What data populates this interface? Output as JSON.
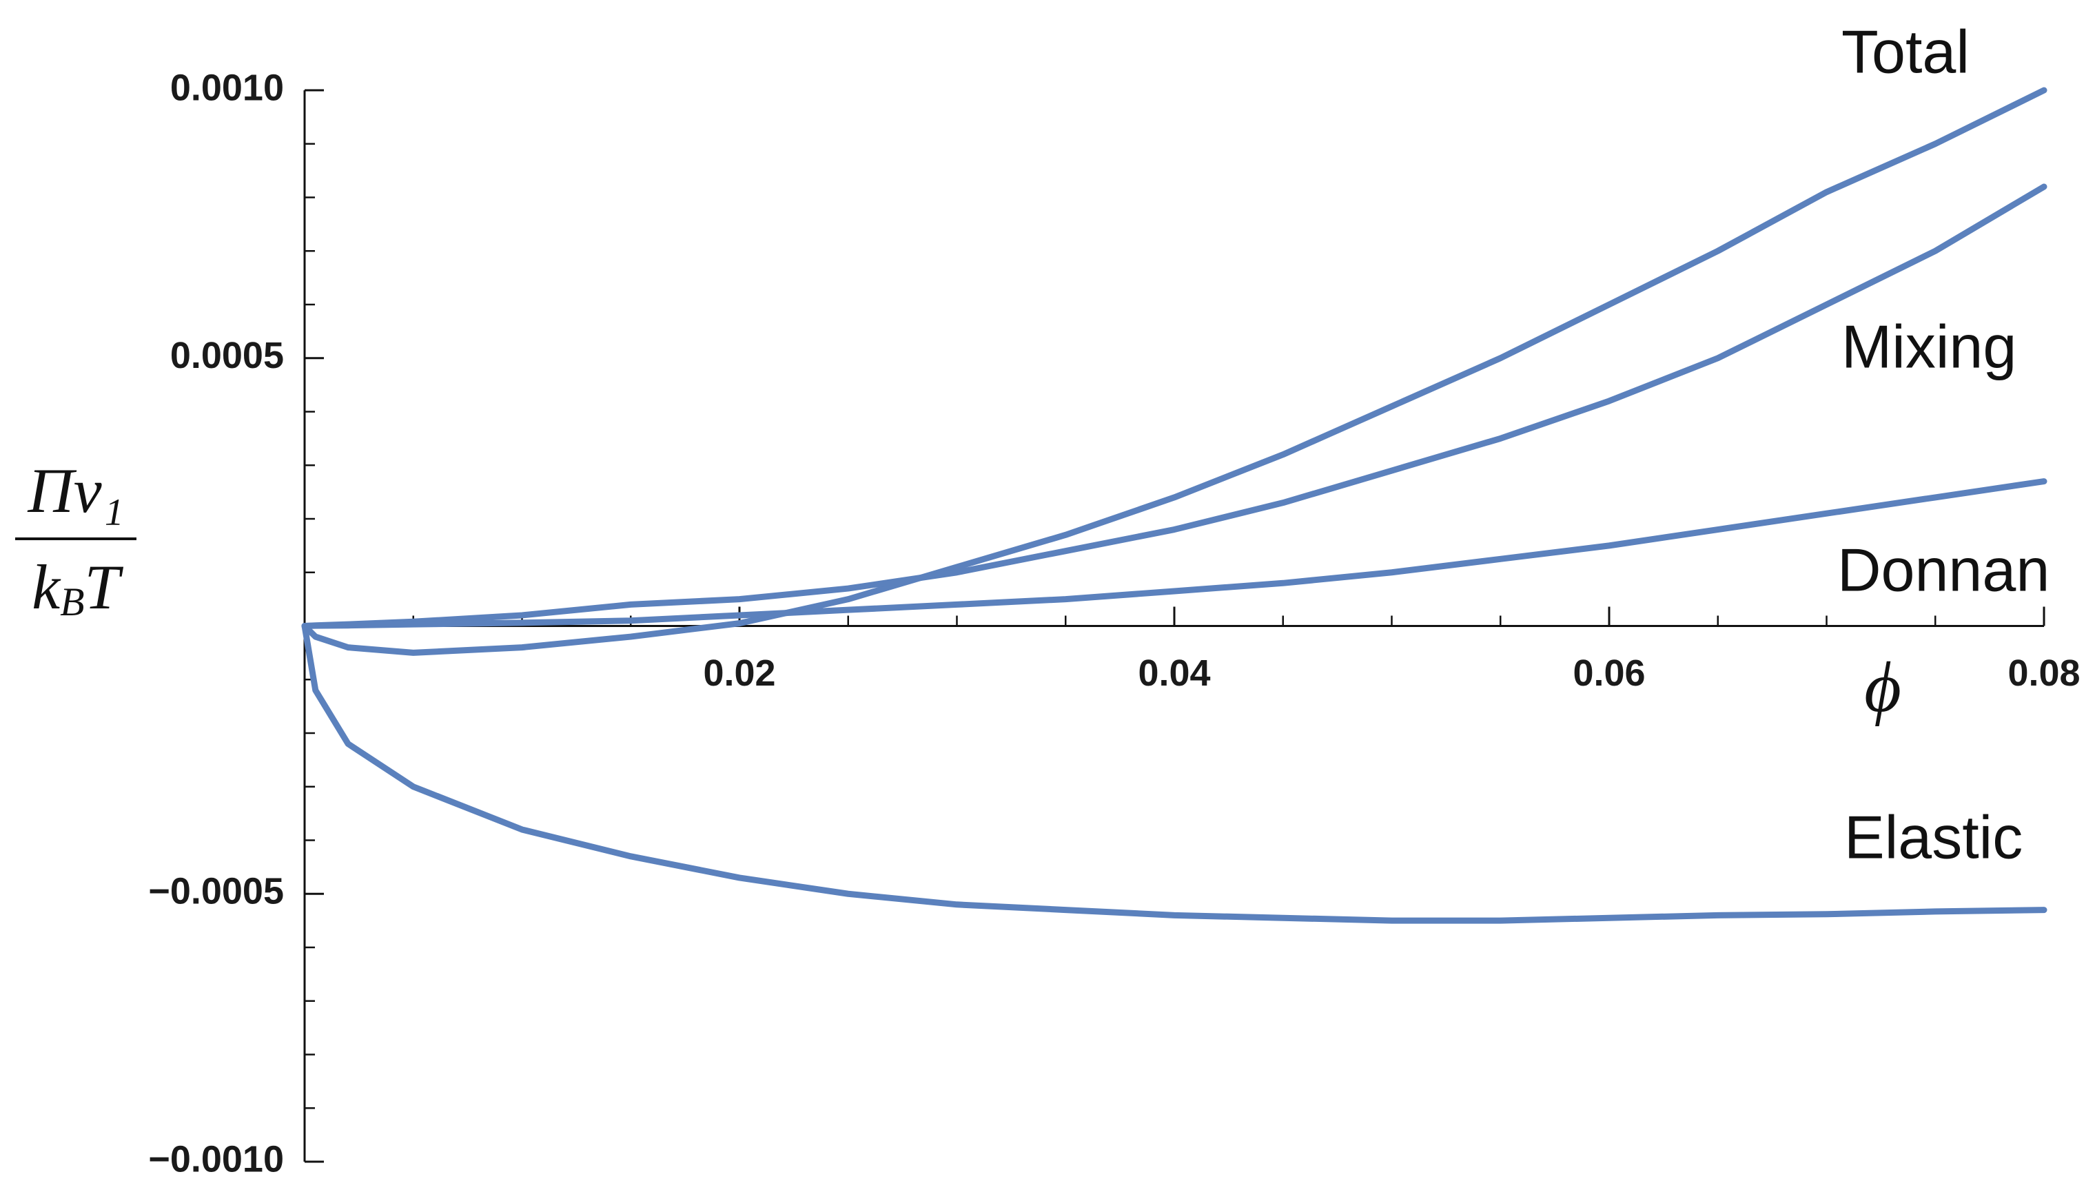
{
  "chart_data": {
    "type": "line",
    "xlabel": "ϕ",
    "ylabel": {
      "numerator": "Πv₁",
      "denominator": {
        "base": "k",
        "subscript": "B",
        "tail": "T"
      }
    },
    "x": [
      0,
      0.0005,
      0.002,
      0.005,
      0.01,
      0.015,
      0.02,
      0.025,
      0.03,
      0.035,
      0.04,
      0.045,
      0.05,
      0.055,
      0.06,
      0.065,
      0.07,
      0.075,
      0.08
    ],
    "series": [
      {
        "name": "Total",
        "color": "#5b81bd",
        "values": [
          0,
          -2e-05,
          -4e-05,
          -5e-05,
          -4e-05,
          -2e-05,
          5e-06,
          5e-05,
          0.00011,
          0.00017,
          0.00024,
          0.00032,
          0.00041,
          0.0005,
          0.0006,
          0.0007,
          0.00081,
          0.0009,
          0.001
        ]
      },
      {
        "name": "Mixing",
        "color": "#5b81bd",
        "values": [
          0,
          1e-06,
          3e-06,
          8e-06,
          2e-05,
          4e-05,
          5e-05,
          7e-05,
          0.0001,
          0.00014,
          0.00018,
          0.00023,
          0.00029,
          0.00035,
          0.00042,
          0.0005,
          0.0006,
          0.0007,
          0.00082
        ]
      },
      {
        "name": "Donnan",
        "color": "#5b81bd",
        "values": [
          0,
          5e-07,
          1e-06,
          3e-06,
          6e-06,
          1e-05,
          2e-05,
          3e-05,
          4e-05,
          5e-05,
          6.5e-05,
          8e-05,
          0.0001,
          0.000125,
          0.00015,
          0.00018,
          0.00021,
          0.00024,
          0.00027
        ]
      },
      {
        "name": "Elastic",
        "color": "#5b81bd",
        "values": [
          0,
          -0.00012,
          -0.00022,
          -0.0003,
          -0.00038,
          -0.00043,
          -0.00047,
          -0.0005,
          -0.00052,
          -0.00053,
          -0.00054,
          -0.000545,
          -0.00055,
          -0.00055,
          -0.000545,
          -0.00054,
          -0.000538,
          -0.000533,
          -0.00053
        ]
      }
    ],
    "xlim": [
      0,
      0.08
    ],
    "ylim": [
      -0.001,
      0.001
    ],
    "xticks": [
      0.02,
      0.04,
      0.06,
      0.08
    ],
    "yticks": [
      {
        "value": -0.001,
        "label": "−0.0010"
      },
      {
        "value": -0.0005,
        "label": "−0.0005"
      },
      0.0005,
      {
        "value": 0.001,
        "label": "0.0010"
      }
    ],
    "minor_xticks": [
      0.005,
      0.01,
      0.015,
      0.025,
      0.03,
      0.035,
      0.045,
      0.05,
      0.055,
      0.065,
      0.07,
      0.075
    ],
    "minor_yticks": [
      -0.0009,
      -0.0008,
      -0.0007,
      -0.0006,
      -0.0004,
      -0.0003,
      -0.0002,
      -0.0001,
      0.0001,
      0.0002,
      0.0003,
      0.0004,
      0.0006,
      0.0007,
      0.0008,
      0.0009
    ]
  }
}
